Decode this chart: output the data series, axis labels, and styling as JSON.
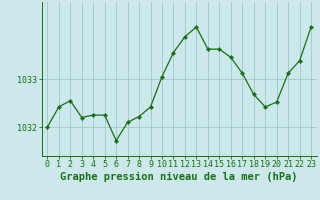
{
  "hours": [
    0,
    1,
    2,
    3,
    4,
    5,
    6,
    7,
    8,
    9,
    10,
    11,
    12,
    13,
    14,
    15,
    16,
    17,
    18,
    19,
    20,
    21,
    22,
    23
  ],
  "pressure": [
    1032.0,
    1032.42,
    1032.55,
    1032.2,
    1032.25,
    1032.25,
    1031.72,
    1032.1,
    1032.22,
    1032.42,
    1033.05,
    1033.55,
    1033.88,
    1034.08,
    1033.62,
    1033.62,
    1033.45,
    1033.12,
    1032.68,
    1032.42,
    1032.52,
    1033.12,
    1033.38,
    1034.08
  ],
  "line_color": "#1a6e1a",
  "marker_color": "#1a6e1a",
  "bg_color": "#cce8ea",
  "grid_color": "#9ec8ca",
  "axis_color": "#1a6e1a",
  "xlabel": "Graphe pression niveau de la mer (hPa)",
  "xlabel_fontsize": 7.5,
  "tick_fontsize": 6.0,
  "ylim": [
    1031.4,
    1034.6
  ],
  "xlim": [
    -0.5,
    23.5
  ]
}
